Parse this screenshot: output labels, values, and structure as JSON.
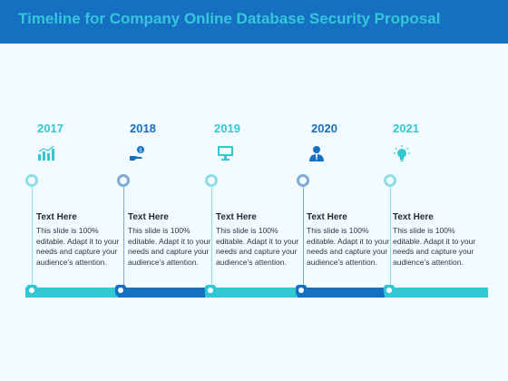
{
  "slide": {
    "title": "Timeline for Company Online Database Security Proposal",
    "colors": {
      "header": "#1670c2",
      "accent": "#33c7d4",
      "primary": "#1670c2",
      "background": "#f2fbff"
    },
    "milestones": [
      {
        "year": "2017",
        "icon": "bar-chart-icon",
        "heading": "Text Here",
        "text": "This slide is 100% editable. Adapt it to your needs and capture your audience’s attention.",
        "tone": "light"
      },
      {
        "year": "2018",
        "icon": "hand-money-icon",
        "heading": "Text Here",
        "text": "This slide is 100% editable. Adapt it to your needs and capture your audience’s attention.",
        "tone": "dark"
      },
      {
        "year": "2019",
        "icon": "monitor-icon",
        "heading": "Text Here",
        "text": "This slide is 100% editable. Adapt it to your needs and capture your audience’s attention.",
        "tone": "light"
      },
      {
        "year": "2020",
        "icon": "businessman-icon",
        "heading": "Text Here",
        "text": "This slide is 100% editable. Adapt it to your needs and capture your audience’s attention.",
        "tone": "dark"
      },
      {
        "year": "2021",
        "icon": "lightbulb-icon",
        "heading": "Text Here",
        "text": "This slide is 100% editable. Adapt it to your needs and capture your audience’s attention.",
        "tone": "light"
      }
    ]
  }
}
